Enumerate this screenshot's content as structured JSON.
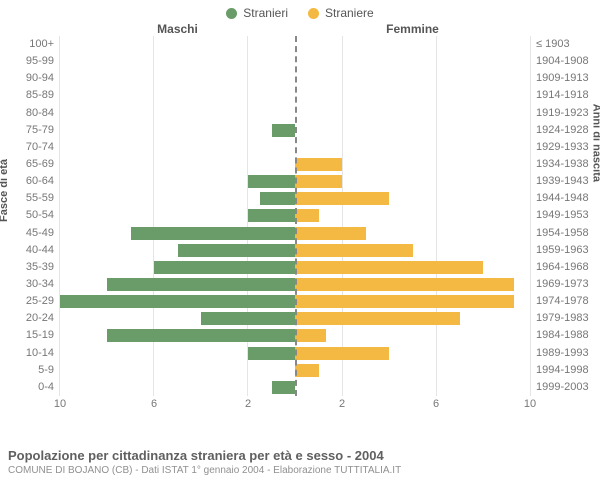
{
  "legend": {
    "male": {
      "label": "Stranieri",
      "color": "#6a9c6a"
    },
    "female": {
      "label": "Straniere",
      "color": "#f4b942"
    }
  },
  "headers": {
    "male": "Maschi",
    "female": "Femmine"
  },
  "axis_labels": {
    "left": "Fasce di età",
    "right": "Anni di nascita"
  },
  "age_bands": [
    "100+",
    "95-99",
    "90-94",
    "85-89",
    "80-84",
    "75-79",
    "70-74",
    "65-69",
    "60-64",
    "55-59",
    "50-54",
    "45-49",
    "40-44",
    "35-39",
    "30-34",
    "25-29",
    "20-24",
    "15-19",
    "10-14",
    "5-9",
    "0-4"
  ],
  "birth_years": [
    "≤ 1903",
    "1904-1908",
    "1909-1913",
    "1914-1918",
    "1919-1923",
    "1924-1928",
    "1929-1933",
    "1934-1938",
    "1939-1943",
    "1944-1948",
    "1949-1953",
    "1954-1958",
    "1959-1963",
    "1964-1968",
    "1969-1973",
    "1974-1978",
    "1979-1983",
    "1984-1988",
    "1989-1993",
    "1994-1998",
    "1999-2003"
  ],
  "male_values": [
    0,
    0,
    0,
    0,
    0,
    1,
    0,
    0,
    2,
    1.5,
    2,
    7,
    5,
    6,
    8,
    10,
    4,
    8,
    2,
    0,
    1
  ],
  "female_values": [
    0,
    0,
    0,
    0,
    0,
    0,
    0,
    2,
    2,
    4,
    1,
    3,
    5,
    8,
    9.3,
    9.3,
    7,
    1.3,
    4,
    1,
    0
  ],
  "x_ticks_left": [
    10,
    6,
    2
  ],
  "x_ticks_right": [
    2,
    6,
    10
  ],
  "x_max": 10,
  "grid_color": "#e5e5e5",
  "background": "#ffffff",
  "title": "Popolazione per cittadinanza straniera per età e sesso - 2004",
  "subtitle": "COMUNE DI BOJANO (CB) - Dati ISTAT 1° gennaio 2004 - Elaborazione TUTTITALIA.IT"
}
